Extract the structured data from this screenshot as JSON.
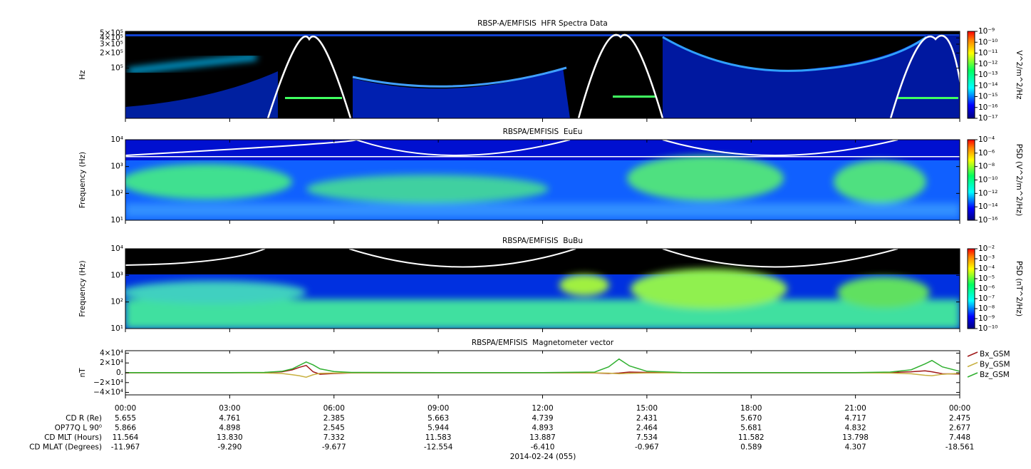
{
  "chart_data": [
    {
      "type": "heatmap",
      "title": "RBSP-A/EMFISIS  HFR Spectra Data",
      "ylabel": "Hz",
      "ylog": true,
      "ylim": [
        10000,
        540000
      ],
      "yticks": [
        {
          "value": 100000,
          "label": "10⁵"
        },
        {
          "value": 200000,
          "label": "2×10⁵"
        },
        {
          "value": 300000,
          "label": "3×10⁵"
        },
        {
          "value": 400000,
          "label": "4×10⁵"
        },
        {
          "value": 500000,
          "label": "5×10⁵"
        }
      ],
      "zlabel": "V^2/m^2/Hz",
      "zlim": [
        1e-17,
        1e-09
      ],
      "zticks": [
        {
          "value": 1e-09,
          "label": "10⁻⁹"
        },
        {
          "value": 1e-10,
          "label": "10⁻¹⁰"
        },
        {
          "value": 1e-11,
          "label": "10⁻¹¹"
        },
        {
          "value": 1e-12,
          "label": "10⁻¹²"
        },
        {
          "value": 1e-13,
          "label": "10⁻¹³"
        },
        {
          "value": 1e-14,
          "label": "10⁻¹⁴"
        },
        {
          "value": 1e-15,
          "label": "10⁻¹⁵"
        },
        {
          "value": 1e-16,
          "label": "10⁻¹⁶"
        },
        {
          "value": 1e-17,
          "label": "10⁻¹⁷"
        }
      ]
    },
    {
      "type": "heatmap",
      "title": "RBSPA/EMFISIS  EuEu",
      "ylabel": "Frequency (Hz)",
      "ylog": true,
      "ylim": [
        10,
        10000
      ],
      "yticks": [
        {
          "value": 10,
          "label": "10¹"
        },
        {
          "value": 100,
          "label": "10²"
        },
        {
          "value": 1000,
          "label": "10³"
        },
        {
          "value": 10000,
          "label": "10⁴"
        }
      ],
      "zlabel": "PSD (V^2/m^2/Hz)",
      "zlim": [
        1e-16,
        0.0001
      ],
      "zticks": [
        {
          "value": 0.0001,
          "label": "10⁻⁴"
        },
        {
          "value": 1e-06,
          "label": "10⁻⁶"
        },
        {
          "value": 1e-08,
          "label": "10⁻⁸"
        },
        {
          "value": 1e-10,
          "label": "10⁻¹⁰"
        },
        {
          "value": 1e-12,
          "label": "10⁻¹²"
        },
        {
          "value": 1e-14,
          "label": "10⁻¹⁴"
        },
        {
          "value": 1e-16,
          "label": "10⁻¹⁶"
        }
      ]
    },
    {
      "type": "heatmap",
      "title": "RBSPA/EMFISIS  BuBu",
      "ylabel": "Frequency (Hz)",
      "ylog": true,
      "ylim": [
        10,
        10000
      ],
      "yticks": [
        {
          "value": 10,
          "label": "10¹"
        },
        {
          "value": 100,
          "label": "10²"
        },
        {
          "value": 1000,
          "label": "10³"
        },
        {
          "value": 10000,
          "label": "10⁴"
        }
      ],
      "zlabel": "PSD (nT^2/Hz)",
      "zlim": [
        1e-10,
        0.01
      ],
      "zticks": [
        {
          "value": 0.01,
          "label": "10⁻²"
        },
        {
          "value": 0.001,
          "label": "10⁻³"
        },
        {
          "value": 0.0001,
          "label": "10⁻⁴"
        },
        {
          "value": 1e-05,
          "label": "10⁻⁵"
        },
        {
          "value": 1e-06,
          "label": "10⁻⁶"
        },
        {
          "value": 1e-07,
          "label": "10⁻⁷"
        },
        {
          "value": 1e-08,
          "label": "10⁻⁸"
        },
        {
          "value": 1e-09,
          "label": "10⁻⁹"
        },
        {
          "value": 1e-10,
          "label": "10⁻¹⁰"
        }
      ]
    },
    {
      "type": "line",
      "title": "RBSPA/EMFISIS  Magnetometer vector",
      "ylabel": "nT",
      "ylim": [
        -45000,
        45000
      ],
      "yticks": [
        {
          "value": 40000,
          "label": "4×10⁴"
        },
        {
          "value": 20000,
          "label": "2×10⁴"
        },
        {
          "value": 0,
          "label": "0."
        },
        {
          "value": -20000,
          "label": "−2×10⁴"
        },
        {
          "value": -40000,
          "label": "−4×10⁴"
        }
      ],
      "x": [
        0,
        3,
        4,
        4.5,
        4.8,
        5.0,
        5.2,
        5.4,
        5.6,
        6,
        6.5,
        9,
        12,
        13.5,
        13.9,
        14.2,
        14.5,
        15,
        16,
        18,
        21,
        22,
        22.6,
        23,
        23.2,
        23.5,
        24
      ],
      "series": [
        {
          "name": "Bx_GSM",
          "color": "#a01818",
          "values": [
            0,
            0,
            500,
            2000,
            6000,
            11000,
            15000,
            2000,
            -3000,
            -1500,
            -300,
            0,
            0,
            -300,
            -1500,
            -500,
            1500,
            800,
            100,
            0,
            0,
            500,
            2000,
            4000,
            2000,
            -2000,
            -2500
          ]
        },
        {
          "name": "By_GSM",
          "color": "#c8b040",
          "values": [
            0,
            0,
            -300,
            -1500,
            -4000,
            -6000,
            -9000,
            -4000,
            -1000,
            -500,
            -200,
            0,
            0,
            -200,
            -800,
            -2000,
            -1000,
            -400,
            0,
            0,
            0,
            -500,
            -2000,
            -5000,
            -6000,
            -3000,
            -1000
          ]
        },
        {
          "name": "Bz_GSM",
          "color": "#30b030",
          "values": [
            300,
            300,
            800,
            3000,
            8000,
            15000,
            22000,
            16000,
            8000,
            2500,
            800,
            300,
            300,
            1500,
            12000,
            28000,
            14000,
            3000,
            600,
            300,
            400,
            1500,
            6000,
            18000,
            25000,
            12000,
            3000
          ]
        }
      ]
    }
  ],
  "time_axis": {
    "xlim": [
      0,
      24
    ],
    "xticks": [
      {
        "value": 0,
        "label": "00:00"
      },
      {
        "value": 3,
        "label": "03:00"
      },
      {
        "value": 6,
        "label": "06:00"
      },
      {
        "value": 9,
        "label": "09:00"
      },
      {
        "value": 12,
        "label": "12:00"
      },
      {
        "value": 15,
        "label": "15:00"
      },
      {
        "value": 18,
        "label": "18:00"
      },
      {
        "value": 21,
        "label": "21:00"
      },
      {
        "value": 24,
        "label": "00:00"
      }
    ]
  },
  "ephemeris": {
    "rows": [
      {
        "label": "CD R (Re)",
        "values": [
          "5.655",
          "4.761",
          "2.385",
          "5.663",
          "4.739",
          "2.431",
          "5.670",
          "4.717",
          "2.475"
        ]
      },
      {
        "label": "OP77Q L 90⁰",
        "values": [
          "5.866",
          "4.898",
          "2.545",
          "5.944",
          "4.893",
          "2.464",
          "5.681",
          "4.832",
          "2.677"
        ]
      },
      {
        "label": "CD MLT (Hours)",
        "values": [
          "11.564",
          "13.830",
          "7.332",
          "11.583",
          "13.887",
          "7.534",
          "11.582",
          "13.798",
          "7.448"
        ]
      },
      {
        "label": "CD MLAT (Degrees)",
        "values": [
          "-11.967",
          "-9.290",
          "-9.677",
          "-12.554",
          "-6.410",
          "-0.967",
          "0.589",
          "4.307",
          "-18.561"
        ]
      }
    ]
  },
  "date_label": "2014-02-24 (055)"
}
